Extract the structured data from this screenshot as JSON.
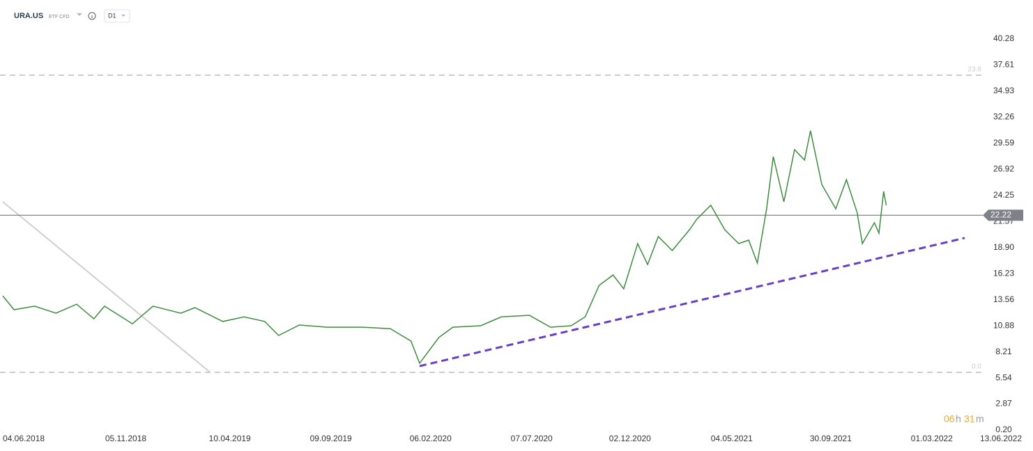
{
  "header": {
    "symbol": "URA.US",
    "instrument_type": "ETF CFD",
    "interval": "D1"
  },
  "timer": [
    "06",
    "h",
    "31",
    "m"
  ],
  "chart_data": {
    "type": "line",
    "color": "#3d8b3d",
    "x": [
      "04.06.2018",
      "21.06.2018",
      "22.07.2018",
      "23.08.2018",
      "23.09.2018",
      "19.10.2018",
      "04.11.2018",
      "16.12.2018",
      "16.01.2019",
      "27.02.2019",
      "20.03.2019",
      "01.05.2019",
      "02.06.2019",
      "03.07.2019",
      "24.07.2019",
      "24.08.2019",
      "05.10.2019",
      "27.11.2019",
      "08.01.2020",
      "08.02.2020",
      "21.02.2020",
      "21.03.2020",
      "11.04.2020",
      "23.05.2020",
      "23.06.2020",
      "04.08.2020",
      "05.09.2020",
      "06.10.2020",
      "27.10.2020",
      "17.11.2020",
      "08.12.2020",
      "24.12.2020",
      "14.01.2021",
      "29.01.2021",
      "14.02.2021",
      "07.03.2021",
      "02.04.2021",
      "13.04.2021",
      "04.05.2021",
      "25.05.2021",
      "15.06.2021",
      "30.06.2021",
      "13.07.2021",
      "27.07.2021",
      "06.08.2021",
      "22.08.2021",
      "07.09.2021",
      "22.09.2021",
      "01.10.2021",
      "18.10.2021",
      "08.11.2021",
      "24.11.2021",
      "10.12.2021",
      "18.12.2021",
      "05.01.2022",
      "12.01.2022",
      "19.01.2022",
      "23.01.2022"
    ],
    "values": [
      13.96,
      12.54,
      12.9,
      12.18,
      13.1,
      11.6,
      12.9,
      11.1,
      12.9,
      12.18,
      12.75,
      11.33,
      11.8,
      11.33,
      9.9,
      10.97,
      10.75,
      10.75,
      10.6,
      9.33,
      7.05,
      9.7,
      10.75,
      10.9,
      11.8,
      11.97,
      10.75,
      10.9,
      11.8,
      15.03,
      16.1,
      14.68,
      19.31,
      17.17,
      20.03,
      18.6,
      20.74,
      21.81,
      23.24,
      20.74,
      19.31,
      19.67,
      17.32,
      22.88,
      28.23,
      23.59,
      28.94,
      27.87,
      30.87,
      25.37,
      22.88,
      25.87,
      22.52,
      19.31,
      21.45,
      20.38,
      24.66,
      23.24
    ],
    "xlim": [
      "04.06.2018",
      "13.06.2022"
    ],
    "xticks": [
      "04.06.2018",
      "05.11.2018",
      "10.04.2019",
      "09.09.2019",
      "06.02.2020",
      "07.07.2020",
      "02.12.2020",
      "04.05.2021",
      "30.09.2021",
      "01.03.2022",
      "13.06.2022"
    ],
    "ylim": [
      0.2,
      40.28
    ],
    "yticks": [
      40.28,
      37.61,
      34.93,
      32.26,
      29.59,
      26.92,
      24.25,
      21.57,
      {
        "value": 18.9,
        "label": "18.90"
      },
      16.23,
      13.56,
      10.88,
      8.21,
      5.54,
      2.87,
      {
        "value": 0.2,
        "label": "0.20"
      }
    ],
    "current_price": 22.22,
    "fib_levels": [
      {
        "label": "23.6",
        "price": 36.57
      },
      {
        "label": "0.0",
        "price": 6.12
      }
    ],
    "trendlines": [
      {
        "color": "#6a3fbf",
        "x": [
          "21.02.2020",
          "21.05.2022"
        ],
        "values": [
          6.76,
          19.89
        ]
      },
      {
        "color": "#cfcfcf",
        "x": [
          "04.06.2018",
          "12.04.2019"
        ],
        "values": [
          23.59,
          6.12
        ]
      }
    ]
  }
}
